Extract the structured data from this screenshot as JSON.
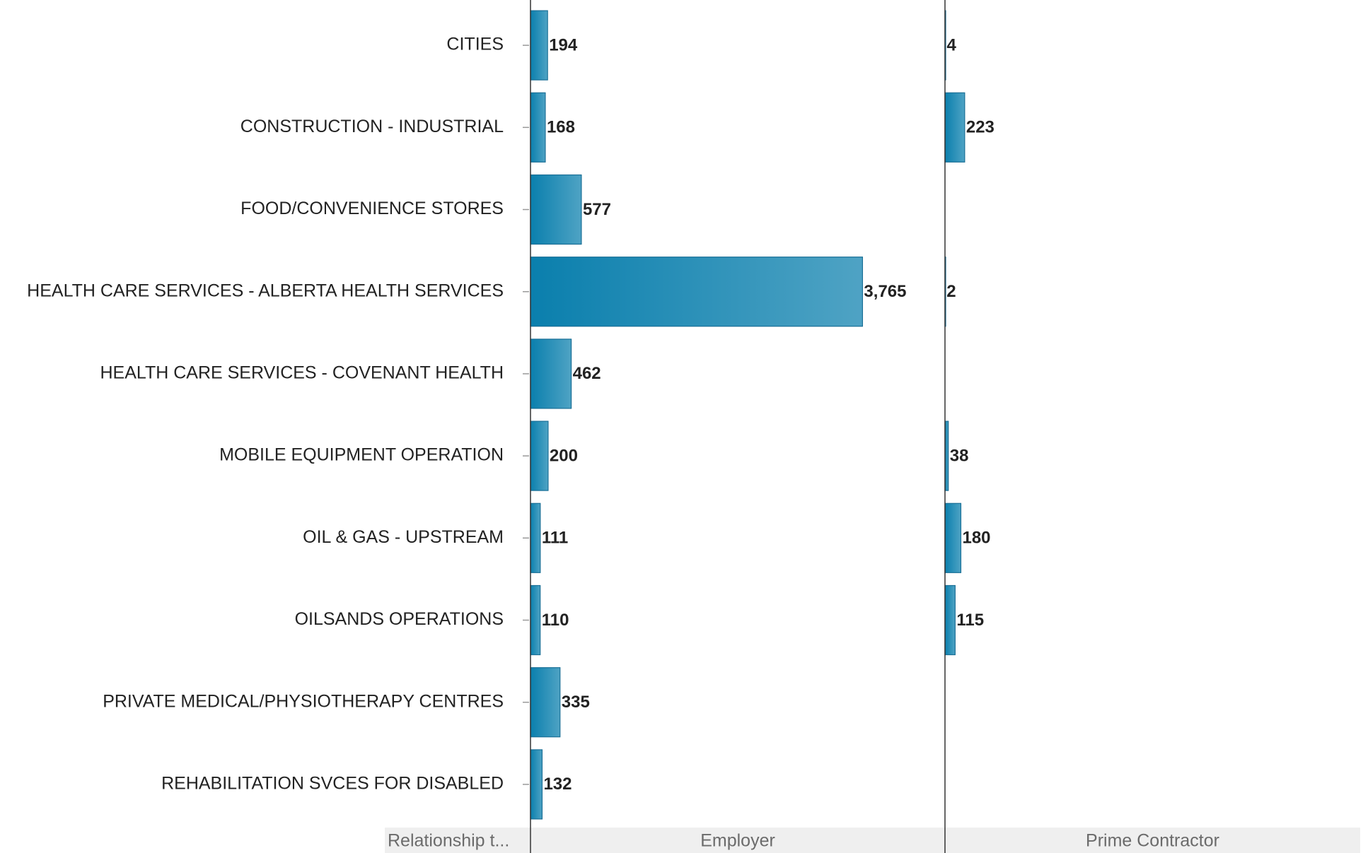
{
  "chart_data": {
    "type": "bar",
    "orientation": "horizontal",
    "column_header": "Relationship t...",
    "categories": [
      "CITIES",
      "CONSTRUCTION - INDUSTRIAL",
      "FOOD/CONVENIENCE STORES",
      "HEALTH CARE SERVICES - ALBERTA HEALTH SERVICES",
      "HEALTH CARE SERVICES - COVENANT HEALTH",
      "MOBILE EQUIPMENT OPERATION",
      "OIL & GAS - UPSTREAM",
      "OILSANDS OPERATIONS",
      "PRIVATE MEDICAL/PHYSIOTHERAPY CENTRES",
      "REHABILITATION SVCES FOR DISABLED"
    ],
    "series": [
      {
        "name": "Employer",
        "color": "#0a7fad",
        "values": [
          194,
          168,
          577,
          3765,
          462,
          200,
          111,
          110,
          335,
          132
        ],
        "value_labels": [
          "194",
          "168",
          "577",
          "3,765",
          "462",
          "200",
          "111",
          "110",
          "335",
          "132"
        ]
      },
      {
        "name": "Prime Contractor",
        "color": "#0a7fad",
        "values": [
          4,
          223,
          null,
          2,
          null,
          38,
          180,
          115,
          null,
          null
        ]
      }
    ],
    "xlim": [
      0,
      4700
    ]
  }
}
